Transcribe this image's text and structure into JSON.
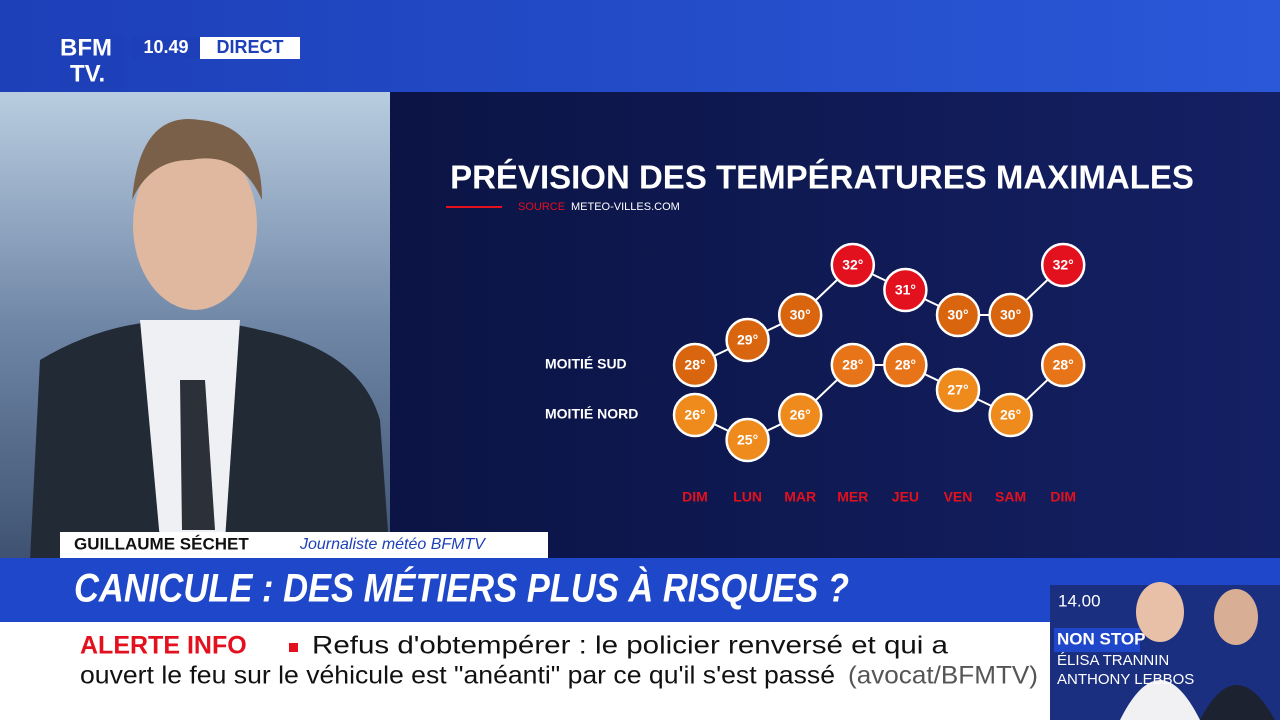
{
  "channel": {
    "logo_top": "BFM",
    "logo_bottom": "TV.",
    "time": "10.49",
    "live": "DIRECT"
  },
  "chart_data": {
    "type": "line",
    "title": "PRÉVISION DES TEMPÉRATURES MAXIMALES",
    "source_label": "SOURCE",
    "source": "METEO-VILLES.COM",
    "categories": [
      "DIM",
      "LUN",
      "MAR",
      "MER",
      "JEU",
      "VEN",
      "SAM",
      "DIM"
    ],
    "ylim": [
      24,
      33
    ],
    "series": [
      {
        "name": "MOITIÉ SUD",
        "color": "#d9650f",
        "colors": [
          "#d9650f",
          "#d9650f",
          "#d9650f",
          "#e3101e",
          "#e3101e",
          "#d9650f",
          "#d9650f",
          "#e3101e"
        ],
        "values": [
          28,
          29,
          30,
          32,
          31,
          30,
          30,
          32
        ],
        "value_labels": [
          "28°",
          "29°",
          "30°",
          "32°",
          "31°",
          "30°",
          "30°",
          "32°"
        ]
      },
      {
        "name": "MOITIÉ NORD",
        "color": "#ef8a1c",
        "colors": [
          "#ef8a1c",
          "#ef8a1c",
          "#ef8a1c",
          "#e8741a",
          "#e8741a",
          "#ef8a1c",
          "#ef8a1c",
          "#e8741a"
        ],
        "values": [
          26,
          25,
          26,
          28,
          28,
          27,
          26,
          28
        ],
        "value_labels": [
          "26°",
          "25°",
          "26°",
          "28°",
          "28°",
          "27°",
          "26°",
          "28°"
        ]
      }
    ]
  },
  "lower_third": {
    "name": "GUILLAUME SÉCHET",
    "role": "Journaliste météo BFMTV",
    "headline": "CANICULE : DES MÉTIERS PLUS À RISQUES ?"
  },
  "ticker": {
    "label": "ALERTE INFO",
    "line1": "Refus d'obtempérer : le policier renversé et qui a",
    "line2": "ouvert le feu sur le véhicule est \"anéanti\" par ce qu'il s'est passé",
    "credit": "(avocat/BFMTV)"
  },
  "next": {
    "time": "14.00",
    "show": "NON STOP",
    "host1": "ÉLISA TRANNIN",
    "host2": "ANTHONY LEBBOS"
  }
}
